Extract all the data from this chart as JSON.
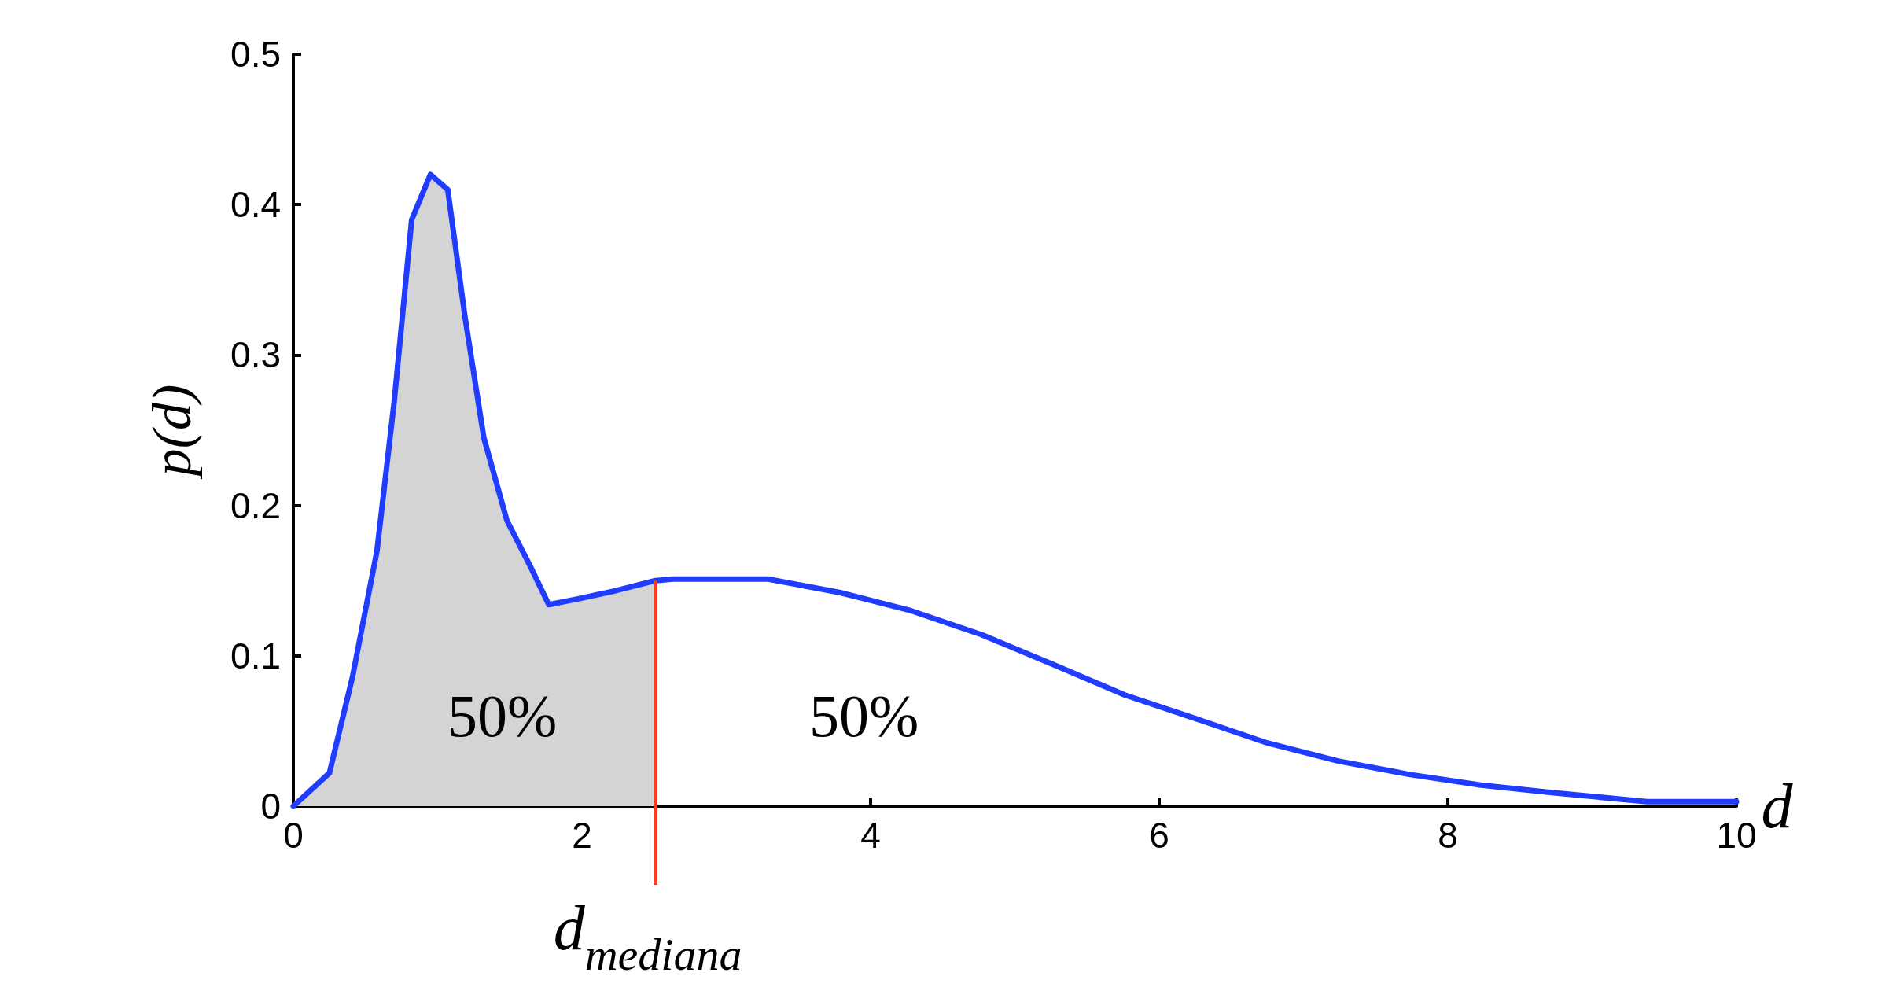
{
  "chart_data": {
    "type": "line",
    "xlabel": "d",
    "ylabel": "p(d)",
    "xlim": [
      0,
      10
    ],
    "xticks": [
      0,
      2,
      4,
      6,
      8,
      10
    ],
    "ylim": [
      0,
      0.5
    ],
    "yticks": [
      0,
      0.1,
      0.2,
      0.3,
      0.4,
      0.5
    ],
    "grid": false,
    "marker": "none",
    "series": [
      {
        "type": "area",
        "color": "#d4d4d4",
        "x": [
          0,
          0.25,
          0.41,
          0.58,
          0.7,
          0.82,
          0.95,
          1.07,
          1.19,
          1.32,
          1.48,
          1.65,
          1.77,
          1.98,
          2.22,
          2.51
        ],
        "values": [
          0,
          0.022,
          0.086,
          0.17,
          0.27,
          0.39,
          0.42,
          0.41,
          0.325,
          0.245,
          0.19,
          0.158,
          0.134,
          0.138,
          0.143,
          0.15
        ]
      },
      {
        "color": "#1f3cff",
        "x": [
          0,
          0.25,
          0.41,
          0.58,
          0.7,
          0.82,
          0.95,
          1.07,
          1.19,
          1.32,
          1.48,
          1.65,
          1.77,
          1.98,
          2.22,
          2.51,
          2.63,
          3.29,
          3.79,
          4.28,
          4.77,
          5.27,
          5.76,
          6.26,
          6.75,
          7.24,
          7.74,
          8.23,
          8.72,
          9.38,
          10
        ],
        "values": [
          0,
          0.022,
          0.086,
          0.17,
          0.27,
          0.39,
          0.42,
          0.41,
          0.325,
          0.245,
          0.19,
          0.158,
          0.134,
          0.138,
          0.143,
          0.15,
          0.151,
          0.151,
          0.142,
          0.13,
          0.114,
          0.094,
          0.074,
          0.058,
          0.042,
          0.03,
          0.021,
          0.014,
          0.009,
          0.003,
          0.003
        ]
      }
    ],
    "ref_lines": [
      {
        "axis": "x",
        "value": 2.51,
        "label": "d$_{mediana}$",
        "color": "#ff3b1f"
      }
    ],
    "annotations": [
      "50%",
      "50%"
    ]
  }
}
